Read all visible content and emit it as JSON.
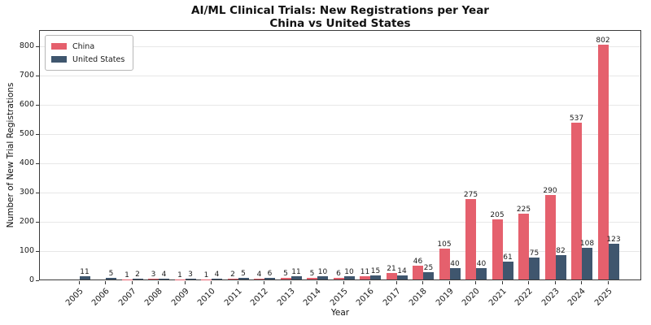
{
  "chart": {
    "title_line1": "AI/ML Clinical Trials: New Registrations per Year",
    "title_line2": "China vs United States",
    "xlabel": "Year",
    "ylabel": "Number of New Trial Registrations"
  },
  "chart_data": {
    "type": "bar",
    "title": "AI/ML Clinical Trials: New Registrations per Year",
    "subtitle": "China vs United States",
    "xlabel": "Year",
    "ylabel": "Number of New Trial Registrations",
    "categories": [
      "2005",
      "2006",
      "2007",
      "2008",
      "2009",
      "2010",
      "2011",
      "2012",
      "2013",
      "2014",
      "2015",
      "2016",
      "2017",
      "2018",
      "2019",
      "2020",
      "2021",
      "2022",
      "2023",
      "2024",
      "2025"
    ],
    "series": [
      {
        "name": "China",
        "color": "#e5606d",
        "values": [
          0,
          0,
          1,
          3,
          1,
          1,
          2,
          4,
          5,
          5,
          6,
          11,
          21,
          46,
          105,
          275,
          205,
          225,
          290,
          537,
          802
        ]
      },
      {
        "name": "United States",
        "color": "#3f566e",
        "values": [
          11,
          5,
          2,
          4,
          3,
          4,
          5,
          6,
          11,
          10,
          10,
          15,
          14,
          25,
          40,
          40,
          61,
          75,
          82,
          108,
          123
        ]
      }
    ],
    "ylim": [
      0,
      800
    ],
    "yticks": [
      0,
      100,
      200,
      300,
      400,
      500,
      600,
      700,
      800
    ],
    "grid": true,
    "bar_value_labels": true,
    "zero_values_unlabeled": true,
    "legend_position": "upper left"
  },
  "colors": {
    "china": "#e5606d",
    "united_states": "#3f566e",
    "gridline": "#e7e7e7",
    "spine": "#3a3a3a",
    "text": "#1a1a1a"
  }
}
